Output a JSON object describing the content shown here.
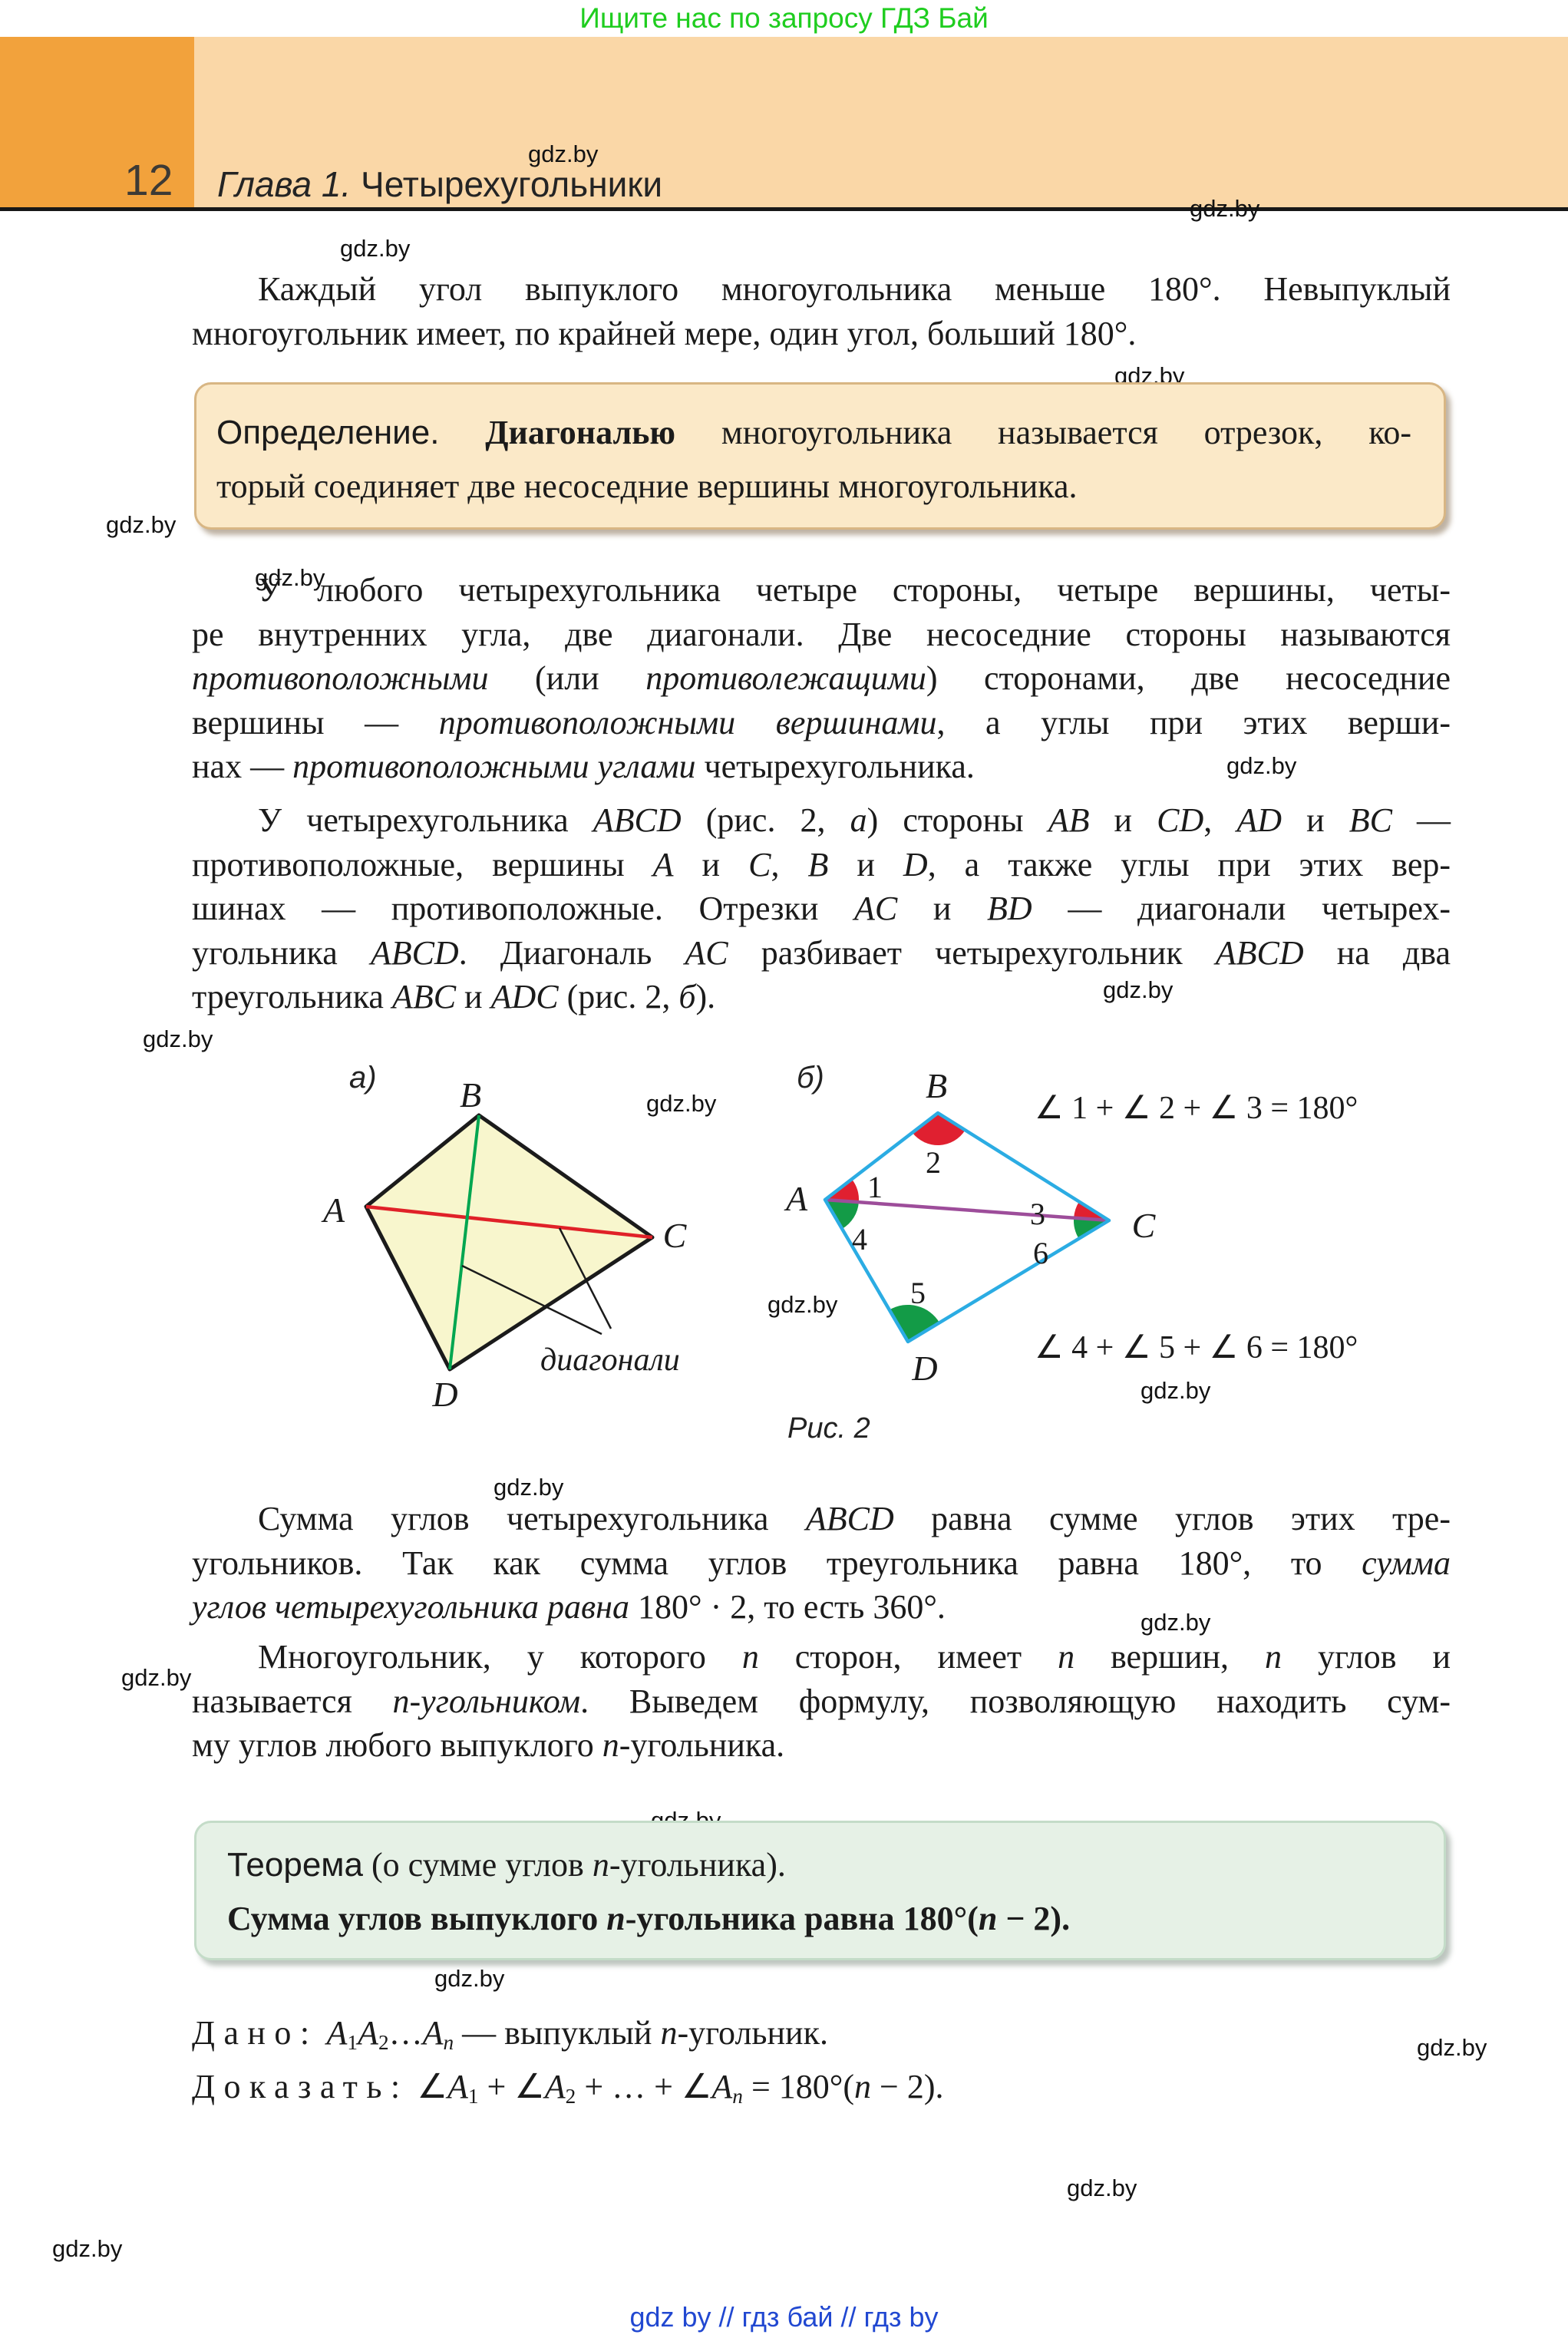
{
  "banner": {
    "text": "Ищите нас по запросу ГДЗ Бай",
    "color": "#1FCD1F"
  },
  "header": {
    "page_number": "12",
    "chapter_label": "Глава 1.",
    "chapter_title": " Четырехугольники",
    "block_color": "#F2A23C",
    "band_color": "#FAD7A7"
  },
  "watermark": {
    "text": "gdz.by"
  },
  "footer": {
    "text": "gdz by  //  гдз бай  //  гдз by",
    "color": "#2148D1"
  },
  "colors": {
    "body_text": "#1B1B1B",
    "definition_box_bg": "#FBE9C8",
    "definition_box_border": "#D8B684",
    "theorem_box_bg": "#E6F1E6",
    "figure_a_fill": "#F8F6CD",
    "figure_b_edge_cyan": "#2BACE3",
    "diagonal_red": "#E02128",
    "diagonal_green": "#00A650",
    "diagonal_purple": "#9D4D9A",
    "angle_red": "#E02030",
    "angle_green": "#139B47"
  },
  "content": {
    "p1": {
      "lines": [
        [
          {
            "t": "Каждый угол выпуклого многоугольника меньше 180°. Невыпуклый"
          }
        ],
        [
          {
            "t": "многоугольник имеет, по крайней мере, один угол, больший 180°."
          }
        ]
      ]
    },
    "definition": {
      "lines": [
        [
          {
            "t": "Определение.",
            "s": "sans"
          },
          {
            "t": " "
          },
          {
            "t": "Диагональю",
            "s": "b"
          },
          {
            "t": " многоугольника называется отрезок, ко-"
          }
        ],
        [
          {
            "t": "торый соединяет две несоседние вершины многоугольника."
          }
        ]
      ]
    },
    "p2": {
      "lines": [
        [
          {
            "t": "У любого четырехугольника четыре стороны, четыре вершины, четы-"
          }
        ],
        [
          {
            "t": "ре внутренних угла, две диагонали. Две несоседние стороны называются"
          }
        ],
        [
          {
            "t": "противоположными",
            "s": "i"
          },
          {
            "t": " (или "
          },
          {
            "t": "противолежащими",
            "s": "i"
          },
          {
            "t": ") сторонами, две несоседние"
          }
        ],
        [
          {
            "t": "вершины — "
          },
          {
            "t": "противоположными вершинами",
            "s": "i"
          },
          {
            "t": ", а углы при этих верши-"
          }
        ],
        [
          {
            "t": "нах — "
          },
          {
            "t": "противоположными углами",
            "s": "i"
          },
          {
            "t": " четырехугольника."
          }
        ]
      ]
    },
    "p3": {
      "lines": [
        [
          {
            "t": "У четырехугольника "
          },
          {
            "t": "ABCD",
            "s": "i"
          },
          {
            "t": " (рис. 2, "
          },
          {
            "t": "а",
            "s": "i"
          },
          {
            "t": ") стороны "
          },
          {
            "t": "AB",
            "s": "i"
          },
          {
            "t": " и "
          },
          {
            "t": "CD",
            "s": "i"
          },
          {
            "t": ", "
          },
          {
            "t": "AD",
            "s": "i"
          },
          {
            "t": " и "
          },
          {
            "t": "BC",
            "s": "i"
          },
          {
            "t": " —"
          }
        ],
        [
          {
            "t": "противоположные, вершины "
          },
          {
            "t": "A",
            "s": "i"
          },
          {
            "t": " и "
          },
          {
            "t": "C",
            "s": "i"
          },
          {
            "t": ", "
          },
          {
            "t": "B",
            "s": "i"
          },
          {
            "t": " и "
          },
          {
            "t": "D",
            "s": "i"
          },
          {
            "t": ", а также углы при этих вер-"
          }
        ],
        [
          {
            "t": "шинах — противоположные. Отрезки "
          },
          {
            "t": "AC",
            "s": "i"
          },
          {
            "t": " и "
          },
          {
            "t": "BD",
            "s": "i"
          },
          {
            "t": " — диагонали четырех-"
          }
        ],
        [
          {
            "t": "угольника "
          },
          {
            "t": "ABCD",
            "s": "i"
          },
          {
            "t": ". Диагональ "
          },
          {
            "t": "AC",
            "s": "i"
          },
          {
            "t": " разбивает четырехугольник "
          },
          {
            "t": "ABCD",
            "s": "i"
          },
          {
            "t": " на два"
          }
        ],
        [
          {
            "t": "треугольника "
          },
          {
            "t": "ABC",
            "s": "i"
          },
          {
            "t": " и "
          },
          {
            "t": "ADC",
            "s": "i"
          },
          {
            "t": " (рис. 2, "
          },
          {
            "t": "б",
            "s": "i"
          },
          {
            "t": ")."
          }
        ]
      ]
    },
    "p4": {
      "lines": [
        [
          {
            "t": "Сумма углов четырехугольника "
          },
          {
            "t": "ABCD",
            "s": "i"
          },
          {
            "t": " равна сумме углов этих тре-"
          }
        ],
        [
          {
            "t": "угольников. Так как сумма углов треугольника равна 180°, то "
          },
          {
            "t": "сумма",
            "s": "i"
          }
        ],
        [
          {
            "t": "углов четырехугольника равна",
            "s": "i"
          },
          {
            "t": " 180° · 2, то есть 360°."
          }
        ]
      ]
    },
    "p5": {
      "lines": [
        [
          {
            "t": "Многоугольник, у которого "
          },
          {
            "t": "n",
            "s": "i"
          },
          {
            "t": " сторон, имеет "
          },
          {
            "t": "n",
            "s": "i"
          },
          {
            "t": " вершин, "
          },
          {
            "t": "n",
            "s": "i"
          },
          {
            "t": " углов и"
          }
        ],
        [
          {
            "t": "называется "
          },
          {
            "t": "n-угольником",
            "s": "i"
          },
          {
            "t": ". Выведем формулу, позволяющую находить сум-"
          }
        ],
        [
          {
            "t": "му углов любого выпуклого "
          },
          {
            "t": "n",
            "s": "i"
          },
          {
            "t": "-угольника."
          }
        ]
      ]
    },
    "theorem1": {
      "lines": [
        [
          {
            "t": "Теорема",
            "s": "sans"
          },
          {
            "t": " (о сумме углов "
          },
          {
            "t": "n",
            "s": "i"
          },
          {
            "t": "-угольника)."
          }
        ]
      ]
    },
    "theorem2": {
      "lines": [
        [
          {
            "t": "Сумма углов выпуклого ",
            "s": "b"
          },
          {
            "t": "n",
            "s": "bi"
          },
          {
            "t": "-угольника равна 180°(",
            "s": "b"
          },
          {
            "t": "n",
            "s": "bi"
          },
          {
            "t": " − 2).",
            "s": "b"
          }
        ]
      ]
    },
    "given": {
      "lines": [
        [
          {
            "t": "Дано:",
            "s": "sp"
          },
          {
            "t": " "
          },
          {
            "t": "A",
            "s": "i"
          },
          {
            "t": "1",
            "s": "sub"
          },
          {
            "t": "A",
            "s": "i"
          },
          {
            "t": "2",
            "s": "sub"
          },
          {
            "t": "…"
          },
          {
            "t": "A",
            "s": "i"
          },
          {
            "t": "n",
            "s": "subi"
          },
          {
            "t": " — выпуклый "
          },
          {
            "t": "n",
            "s": "i"
          },
          {
            "t": "-угольник."
          }
        ]
      ]
    },
    "prove": {
      "lines": [
        [
          {
            "t": "Доказать:",
            "s": "sp"
          },
          {
            "t": " "
          },
          {
            "t": "∠",
            "s": "m"
          },
          {
            "t": "A",
            "s": "i"
          },
          {
            "t": "1",
            "s": "sub"
          },
          {
            "t": " + "
          },
          {
            "t": "∠",
            "s": "m"
          },
          {
            "t": "A",
            "s": "i"
          },
          {
            "t": "2",
            "s": "sub"
          },
          {
            "t": " + … + "
          },
          {
            "t": "∠",
            "s": "m"
          },
          {
            "t": "A",
            "s": "i"
          },
          {
            "t": "n",
            "s": "subi"
          },
          {
            "t": " = 180°("
          },
          {
            "t": "n",
            "s": "i"
          },
          {
            "t": " − 2)."
          }
        ]
      ]
    }
  },
  "figure": {
    "label_a": "а)",
    "label_b": "б)",
    "caption": "Рис. 2",
    "diagonals_label": "диагонали",
    "vertex_labels": {
      "A": "A",
      "B": "B",
      "C": "C",
      "D": "D"
    },
    "angle_labels": {
      "n1": "1",
      "n2": "2",
      "n3": "3",
      "n4": "4",
      "n5": "5",
      "n6": "6"
    },
    "formula_top": "∠ 1 + ∠ 2 + ∠ 3 = 180°",
    "formula_bottom": "∠ 4 + ∠ 5 + ∠ 6 = 180°"
  }
}
